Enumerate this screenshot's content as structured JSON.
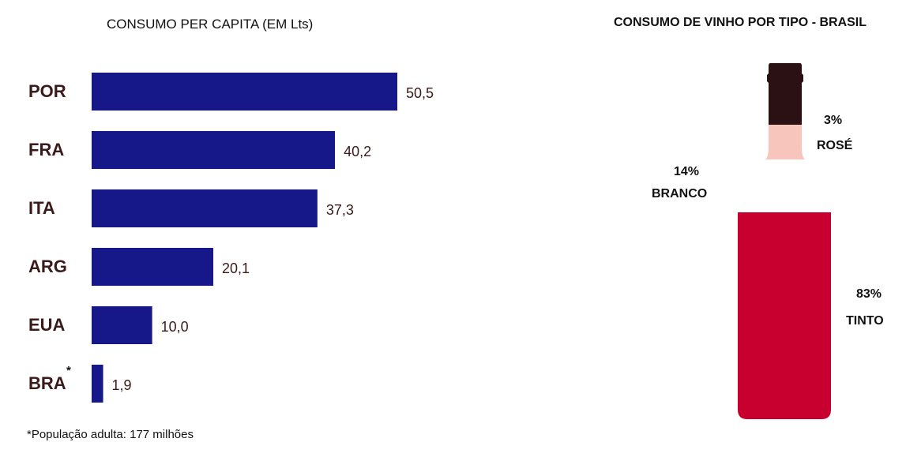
{
  "chart_data": [
    {
      "type": "bar",
      "orientation": "horizontal",
      "title": "CONSUMO PER CAPITA (EM Lts)",
      "categories": [
        "POR",
        "FRA",
        "ITA",
        "ARG",
        "EUA",
        "BRA"
      ],
      "category_markers": [
        "",
        "",
        "",
        "",
        "",
        "*"
      ],
      "values": [
        50.5,
        40.2,
        37.3,
        20.1,
        10.0,
        1.9
      ],
      "value_labels": [
        "50,5",
        "40,2",
        "37,3",
        "20,1",
        "10,0",
        "1,9"
      ],
      "bar_color": "#16188a",
      "label_color": "#3a1a1a",
      "grid": false,
      "footnote": "*População adulta: 177 milhões"
    },
    {
      "type": "pie",
      "style": "bottle",
      "title": "CONSUMO DE VINHO POR TIPO - BRASIL",
      "slices": [
        {
          "label": "ROSÉ",
          "value": 3,
          "display": "3%",
          "color": "#f7c5bb"
        },
        {
          "label": "BRANCO",
          "value": 14,
          "display": "14%",
          "color": "#ffffff"
        },
        {
          "label": "TINTO",
          "value": 83,
          "display": "83%",
          "color": "#c8002f"
        }
      ],
      "cap_color": "#2b1014"
    }
  ]
}
